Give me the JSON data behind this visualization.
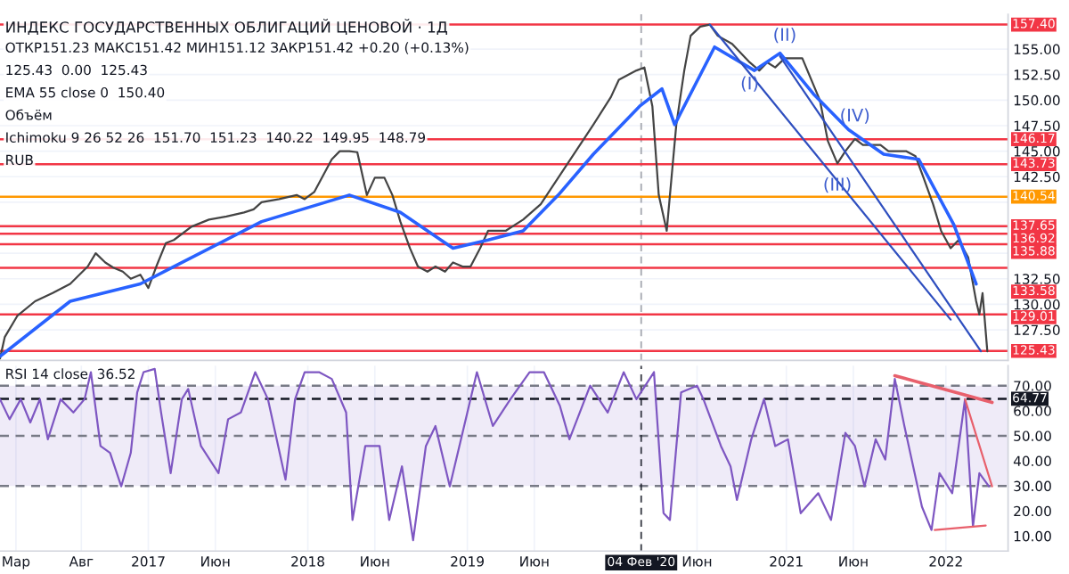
{
  "chart_data": [
    {
      "type": "line",
      "title": "ИНДЕКС ГОСУДАРСТВЕННЫХ ОБЛИГАЦИЙ ЦЕНОВОЙ · 1Д",
      "annotations": [
        "ОТКР151.23 МАКС151.42 МИН151.12 ЗАКР151.42 +0.20 (+0.13%)",
        "125.43  0.00  125.43",
        "EMA 55 close 0  150.40",
        "Объём",
        "Ichimoku 9 26 52 26  151.70  151.23  140.22  149.95  148.79",
        "RUB",
        {
          "text": "(I)",
          "x": 2020.77,
          "y": 153.7
        },
        {
          "text": "(II)",
          "x": 2020.99,
          "y": 154.1
        },
        {
          "text": "(III)",
          "x": 2021.32,
          "y": 143.8
        },
        {
          "text": "(IV)",
          "x": 2021.43,
          "y": 146.2
        }
      ],
      "series": [
        {
          "color": "#444444",
          "x": [
            2016.07,
            2016.1,
            2016.18,
            2016.29,
            2016.4,
            2016.51,
            2016.62,
            2016.67,
            2016.73,
            2016.78,
            2016.84,
            2016.89,
            2016.95,
            2017.0,
            2017.05,
            2017.11,
            2017.16,
            2017.27,
            2017.38,
            2017.49,
            2017.6,
            2017.66,
            2017.71,
            2017.82,
            2017.93,
            2017.98,
            2018.04,
            2018.15,
            2018.2,
            2018.26,
            2018.31,
            2018.37,
            2018.42,
            2018.48,
            2018.53,
            2018.58,
            2018.64,
            2018.69,
            2018.75,
            2018.8,
            2018.86,
            2018.91,
            2018.97,
            2019.02,
            2019.08,
            2019.13,
            2019.24,
            2019.35,
            2019.46,
            2019.57,
            2019.68,
            2019.79,
            2019.9,
            2019.95,
            2020.06,
            2020.11,
            2020.16,
            2020.2,
            2020.25,
            2020.28,
            2020.31,
            2020.36,
            2020.4,
            2020.46,
            2020.52,
            2020.57,
            2020.66,
            2020.77,
            2020.83,
            2020.88,
            2020.93,
            2020.99,
            2021.1,
            2021.21,
            2021.26,
            2021.32,
            2021.37,
            2021.43,
            2021.48,
            2021.59,
            2021.64,
            2021.75,
            2021.81,
            2021.86,
            2021.92,
            2021.97,
            2022.03,
            2022.08,
            2022.14,
            2022.19,
            2022.21,
            2022.23,
            2022.26
          ],
          "values": [
            124.7,
            126.8,
            128.9,
            130.3,
            131.1,
            132.0,
            133.7,
            135.0,
            134.1,
            133.6,
            133.2,
            132.5,
            132.9,
            131.6,
            133.7,
            136.0,
            136.3,
            137.6,
            138.3,
            138.6,
            139.0,
            139.3,
            140.0,
            140.3,
            140.7,
            140.3,
            141.0,
            144.2,
            145.0,
            145.0,
            144.9,
            140.7,
            142.4,
            142.4,
            140.7,
            138.1,
            135.5,
            133.7,
            133.2,
            133.7,
            133.2,
            134.1,
            133.7,
            133.7,
            135.5,
            137.2,
            137.2,
            138.3,
            139.8,
            142.4,
            145.0,
            147.6,
            150.3,
            152.0,
            152.9,
            153.2,
            149.4,
            140.7,
            137.2,
            142.4,
            147.6,
            152.9,
            156.3,
            157.2,
            157.4,
            156.3,
            155.5,
            153.7,
            152.9,
            153.7,
            153.2,
            154.1,
            154.1,
            150.0,
            146.0,
            143.8,
            145.0,
            146.2,
            145.6,
            145.6,
            145.0,
            145.0,
            144.5,
            142.4,
            139.8,
            137.2,
            135.5,
            136.3,
            134.6,
            130.3,
            129.0,
            131.1,
            125.4
          ]
        },
        {
          "color": "#2962ff",
          "x": [
            2016.07,
            2016.51,
            2016.95,
            2017.16,
            2017.71,
            2018.26,
            2018.58,
            2018.91,
            2019.13,
            2019.35,
            2019.57,
            2019.79,
            2020.08,
            2020.22,
            2020.3,
            2020.55,
            2020.8,
            2020.96,
            2021.17,
            2021.39,
            2021.61,
            2021.83,
            2022.05,
            2022.19
          ],
          "values": [
            124.9,
            130.3,
            132.0,
            133.7,
            138.1,
            140.7,
            139.0,
            135.5,
            136.3,
            137.2,
            140.7,
            144.7,
            149.4,
            151.1,
            147.6,
            155.2,
            152.9,
            154.6,
            150.6,
            147.1,
            144.7,
            144.2,
            137.8,
            132.0
          ]
        },
        {
          "color": "#2f4fbf",
          "x": [
            2020.52,
            2022.03
          ],
          "values": [
            157.4,
            128.5
          ]
        },
        {
          "color": "#2f4fbf",
          "x": [
            2020.96,
            2022.22
          ],
          "values": [
            154.3,
            125.4
          ]
        }
      ],
      "xlim": [
        2016.07,
        2022.39
      ],
      "ylim": [
        124.5,
        158.4
      ],
      "yticks": [
        {
          "value": 127.5,
          "label": "127.50"
        },
        {
          "value": 130,
          "label": "130.00"
        },
        {
          "value": 132.5,
          "label": "132.50"
        },
        {
          "value": 135,
          "label": null
        },
        {
          "value": 137.5,
          "label": null
        },
        {
          "value": 140,
          "label": null
        },
        {
          "value": 142.5,
          "label": "142.50"
        },
        {
          "value": 145,
          "label": "145.00"
        },
        {
          "value": 147.5,
          "label": "147.50"
        },
        {
          "value": 150,
          "label": "150.00"
        },
        {
          "value": 152.5,
          "label": "152.50"
        },
        {
          "value": 155,
          "label": "155.00"
        }
      ],
      "ref_lines": [
        {
          "axis": "x",
          "value": 2020.09,
          "label": null,
          "color": "#9598a1",
          "line_style": "dashed"
        },
        {
          "axis": "y",
          "value": 157.4,
          "label": "157.40",
          "color": "#f23645"
        },
        {
          "axis": "y",
          "value": 146.17,
          "label": "146.17",
          "color": "#f23645"
        },
        {
          "axis": "y",
          "value": 143.73,
          "label": "143.73",
          "color": "#f23645"
        },
        {
          "axis": "y",
          "value": 140.54,
          "label": "140.54",
          "color": "#ff9800"
        },
        {
          "axis": "y",
          "value": 137.65,
          "label": "137.65",
          "color": "#f23645"
        },
        {
          "axis": "y",
          "value": 136.92,
          "label": "136.92",
          "color": "#f23645"
        },
        {
          "axis": "y",
          "value": 135.88,
          "label": "135.88",
          "color": "#f23645"
        },
        {
          "axis": "y",
          "value": 133.58,
          "label": "133.58",
          "color": "#f23645"
        },
        {
          "axis": "y",
          "value": 129.01,
          "label": "129.01",
          "color": "#f23645"
        },
        {
          "axis": "y",
          "value": 125.43,
          "label": "125.43",
          "color": "#f23645"
        }
      ],
      "grid": true,
      "tick_labels": "y"
    },
    {
      "type": "line",
      "annotations": [
        "RSI 14 close  36.52"
      ],
      "series": [
        {
          "color": "#7e57c2",
          "x": [
            2016.07,
            2016.13,
            2016.2,
            2016.26,
            2016.32,
            2016.37,
            2016.45,
            2016.53,
            2016.6,
            2016.64,
            2016.7,
            2016.76,
            2016.83,
            2016.89,
            2016.93,
            2016.97,
            2017.04,
            2017.08,
            2017.14,
            2017.21,
            2017.25,
            2017.33,
            2017.44,
            2017.5,
            2017.58,
            2017.67,
            2017.75,
            2017.86,
            2017.92,
            2017.98,
            2018.07,
            2018.15,
            2018.24,
            2018.28,
            2018.36,
            2018.45,
            2018.51,
            2018.59,
            2018.66,
            2018.74,
            2018.8,
            2018.89,
            2018.97,
            2019.06,
            2019.16,
            2019.27,
            2019.39,
            2019.48,
            2019.58,
            2019.64,
            2019.77,
            2019.88,
            2019.98,
            2020.06,
            2020.17,
            2020.23,
            2020.27,
            2020.34,
            2020.44,
            2020.48,
            2020.59,
            2020.65,
            2020.69,
            2020.78,
            2020.86,
            2020.93,
            2021.01,
            2021.09,
            2021.2,
            2021.28,
            2021.37,
            2021.43,
            2021.49,
            2021.56,
            2021.62,
            2021.68,
            2021.74,
            2021.85,
            2021.91,
            2021.96,
            2022.04,
            2022.12,
            2022.17,
            2022.21,
            2022.27
          ],
          "values": [
            64.6,
            56.6,
            64.6,
            55.3,
            64.6,
            48.6,
            64.6,
            59.3,
            64.6,
            75.4,
            45.9,
            43.2,
            29.8,
            43.2,
            67.3,
            75.4,
            76.7,
            59.3,
            35.1,
            64.6,
            68.7,
            45.9,
            35.1,
            56.6,
            59.3,
            75.4,
            64.6,
            32.5,
            64.6,
            75.4,
            75.4,
            72.7,
            59.3,
            16.4,
            45.9,
            45.9,
            16.4,
            37.8,
            8.3,
            45.9,
            53.9,
            29.8,
            51.2,
            75.4,
            53.9,
            64.6,
            75.4,
            75.4,
            62.0,
            48.6,
            70,
            59.3,
            75.4,
            64.6,
            75.4,
            19.1,
            16.4,
            67.3,
            70,
            64.6,
            45.9,
            37.8,
            24.4,
            48.6,
            64.6,
            45.9,
            48.6,
            19.1,
            27.1,
            16.4,
            51.2,
            45.9,
            29.8,
            48.6,
            40.5,
            72.7,
            53.9,
            21.7,
            12.4,
            35.1,
            27.1,
            64.6,
            13.7,
            35.1,
            29.8
          ]
        },
        {
          "color": "#e8606c",
          "x": [
            2021.68,
            2022.29
          ],
          "values": [
            74.0,
            63.3
          ]
        },
        {
          "color": "#e8606c",
          "x": [
            2022.12,
            2022.29
          ],
          "values": [
            64.6,
            29.8
          ]
        },
        {
          "color": "#e8606c",
          "x": [
            2021.93,
            2022.25
          ],
          "values": [
            12.4,
            14.2
          ]
        }
      ],
      "xlim": [
        2016.07,
        2022.39
      ],
      "ylim": [
        4,
        78
      ],
      "xticks": [
        {
          "value": 2016.17,
          "label": "Мар"
        },
        {
          "value": 2016.58,
          "label": "Авг"
        },
        {
          "value": 2017,
          "label": "2017"
        },
        {
          "value": 2017.42,
          "label": "Июн"
        },
        {
          "value": 2018,
          "label": "2018"
        },
        {
          "value": 2018.42,
          "label": "Июн"
        },
        {
          "value": 2019,
          "label": "2019"
        },
        {
          "value": 2019.42,
          "label": "Июн"
        },
        {
          "value": 2020.44,
          "label": "Июн"
        },
        {
          "value": 2021,
          "label": "2021"
        },
        {
          "value": 2021.42,
          "label": "Июн"
        },
        {
          "value": 2022,
          "label": "2022"
        }
      ],
      "yticks": [
        {
          "value": 10,
          "label": "10.00"
        },
        {
          "value": 20,
          "label": "20.00"
        },
        {
          "value": 30,
          "label": "30.00"
        },
        {
          "value": 40,
          "label": "40.00"
        },
        {
          "value": 50,
          "label": "50.00"
        },
        {
          "value": 60,
          "label": "60.00"
        },
        {
          "value": 70,
          "label": "70.00"
        }
      ],
      "bands": [
        {
          "axis": "y",
          "from": 30,
          "to": 70,
          "color": "#7e57c2"
        }
      ],
      "ref_lines": [
        {
          "axis": "y",
          "value": 70,
          "label": null,
          "color": "#787b86",
          "line_style": "dashed"
        },
        {
          "axis": "y",
          "value": 50,
          "label": null,
          "color": "#787b86",
          "line_style": "dashed"
        },
        {
          "axis": "y",
          "value": 30,
          "label": null,
          "color": "#787b86",
          "line_style": "dashed"
        },
        {
          "axis": "y",
          "value": 64.77,
          "label": "64.77",
          "color": "#131722",
          "line_style": "dashed"
        },
        {
          "axis": "x",
          "value": 2020.09,
          "label": "04 Фев '20",
          "color": "#131722",
          "line_style": "dashed"
        }
      ],
      "grid": "x"
    }
  ]
}
